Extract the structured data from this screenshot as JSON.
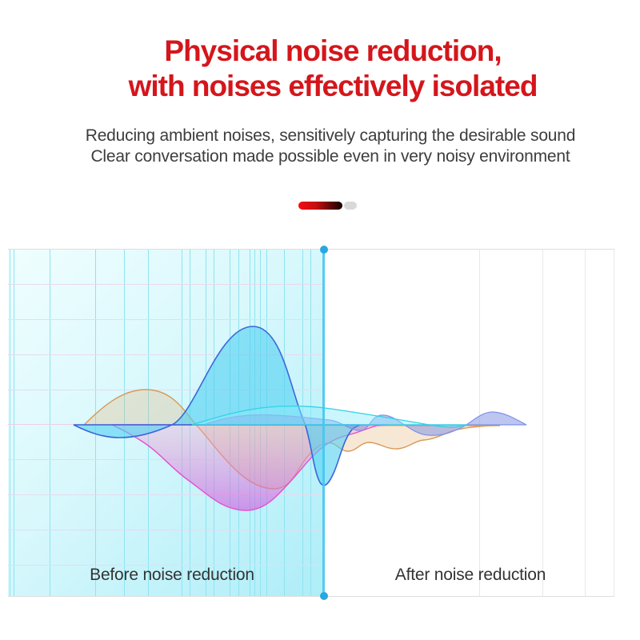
{
  "title": {
    "line1": "Physical noise reduction,",
    "line2": "with noises effectively isolated"
  },
  "subtitle": {
    "line1": "Reducing ambient noises, sensitively capturing the desirable sound",
    "line2": "Clear conversation made possible even in very noisy environment"
  },
  "chart": {
    "before_label": "Before noise reduction",
    "after_label": "After noise reduction"
  },
  "colors": {
    "title-red": "#d4161c",
    "subtitle-gray": "#3d3d3d",
    "label-dark": "#333333",
    "pill-red-bright": "#f20d12",
    "pill-red-dark": "#120101",
    "pill-gray": "#d9d9d9",
    "panel-grad-start": "#f0feff",
    "panel-grad-end": "#aeedf8",
    "grid-cyan": "#8fe3f0",
    "grid-lavender": "#e7daf0",
    "centerline-pink": "#efcfe3",
    "right-grid-gray": "#e8e8e8",
    "border-gray": "#dedede",
    "divider-cyan": "#45c6ee",
    "divider-dot-blue": "#2aa6e0",
    "wave-orange-stroke": "#d99a58",
    "wave-orange-fill": "rgba(228,178,118,0.30)",
    "wave-magenta-stroke": "#e84fd0",
    "wave-magenta-fill-top": "rgba(247,168,207,0.35)",
    "wave-magenta-fill-bottom": "rgba(207,79,224,0.60)",
    "wave-blue-stroke": "#3d66db",
    "wave-blue-fill": "rgba(80,208,242,0.60)",
    "wave-peri-stroke": "#7f92e6",
    "wave-peri-fill": "rgba(124,142,228,0.50)",
    "wave-cyan-stroke": "#32d2e8",
    "wave-cyan-fill": "rgba(140,235,250,0.45)"
  }
}
